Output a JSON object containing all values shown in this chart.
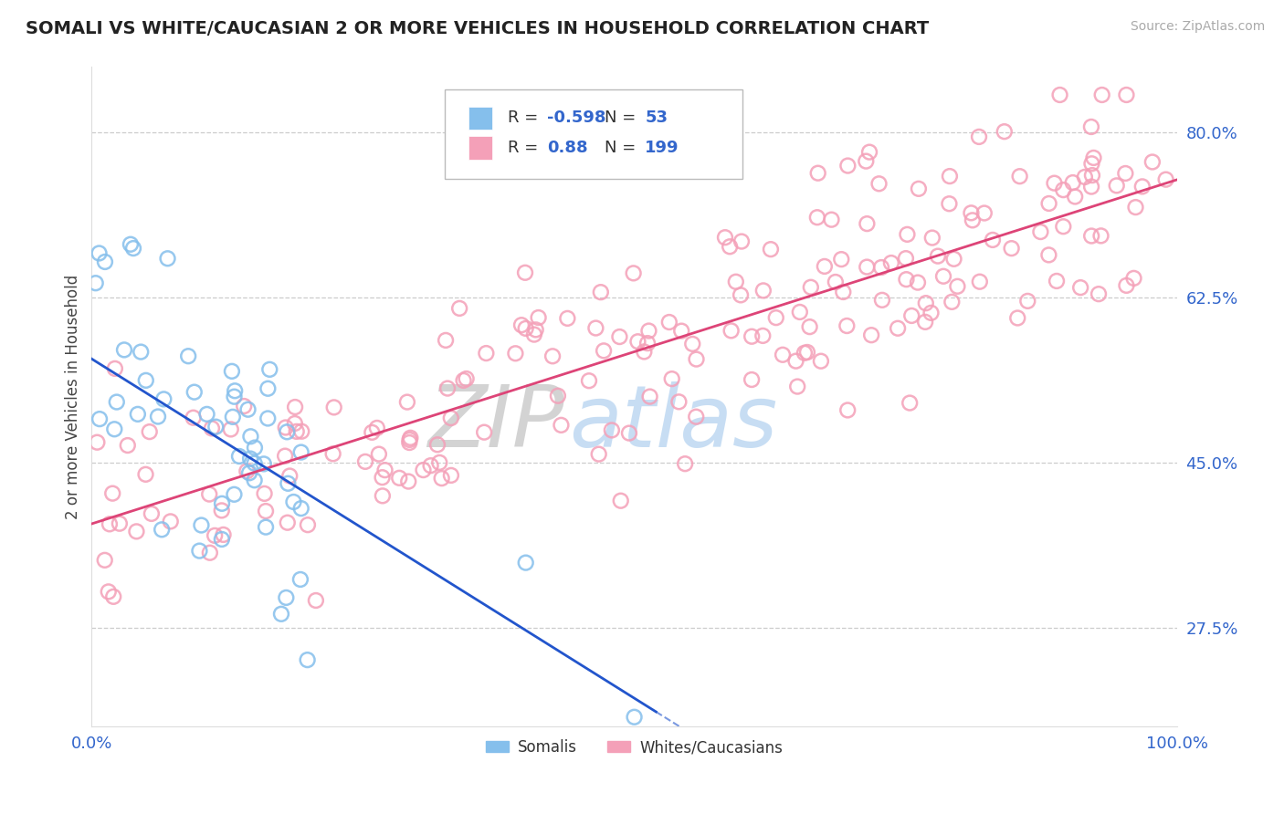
{
  "title": "SOMALI VS WHITE/CAUCASIAN 2 OR MORE VEHICLES IN HOUSEHOLD CORRELATION CHART",
  "source": "Source: ZipAtlas.com",
  "ylabel": "2 or more Vehicles in Household",
  "xlim": [
    0.0,
    100.0
  ],
  "ylim": [
    17.0,
    87.0
  ],
  "yticks": [
    27.5,
    45.0,
    62.5,
    80.0
  ],
  "somali_color": "#85BFEC",
  "white_color": "#F4A0B8",
  "somali_line_color": "#2255CC",
  "white_line_color": "#DD4477",
  "somali_R": -0.598,
  "somali_N": 53,
  "white_R": 0.88,
  "white_N": 199,
  "legend_label_somali": "Somalis",
  "legend_label_white": "Whites/Caucasians",
  "watermark_zip": "ZIP",
  "watermark_atlas": "atlas",
  "background_color": "#ffffff",
  "grid_color": "#cccccc",
  "title_color": "#222222",
  "somali_intercept": 56.0,
  "somali_slope": -0.72,
  "white_intercept": 38.5,
  "white_slope": 0.365,
  "axis_tick_color": "#3366CC"
}
